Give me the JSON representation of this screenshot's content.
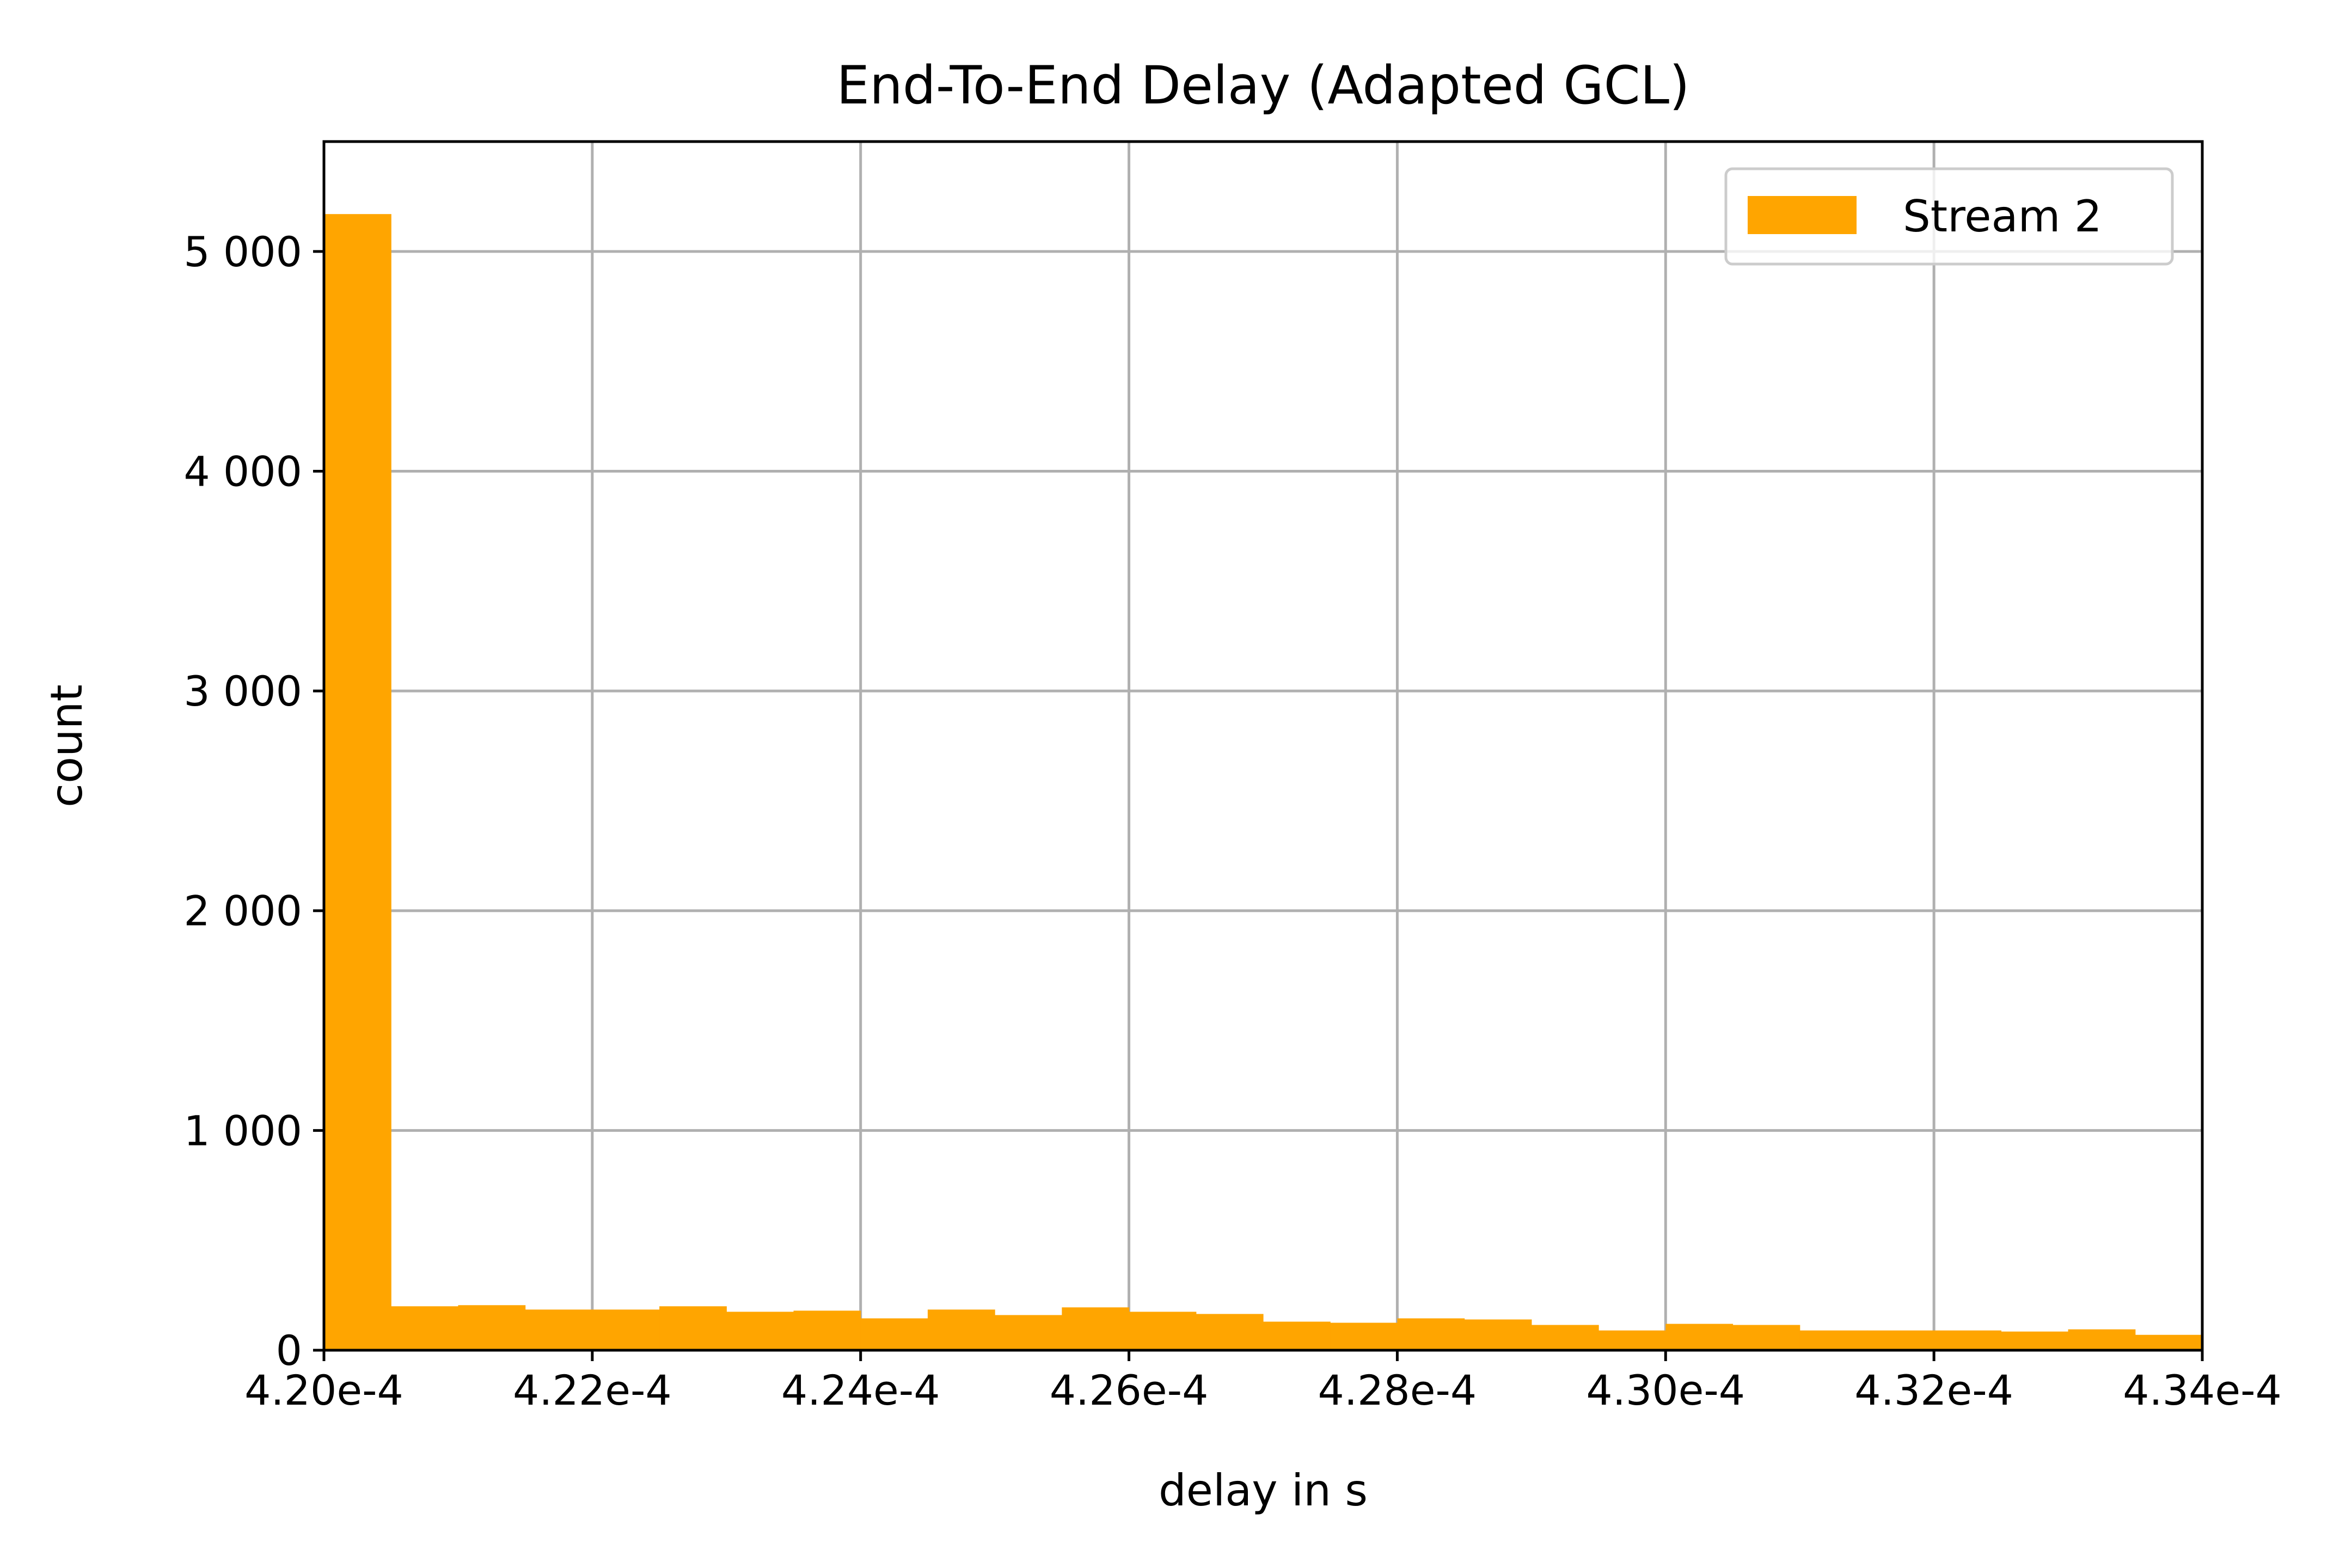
{
  "chart_data": {
    "type": "bar",
    "title": "End-To-End Delay (Adapted GCL)",
    "xlabel": "delay in s",
    "ylabel": "count",
    "xlim": [
      0.00042,
      0.000434
    ],
    "ylim": [
      0,
      5500
    ],
    "grid": true,
    "legend_position": "top-right",
    "bar_color": "#ffa500",
    "x_ticks": [
      {
        "value": 0.00042,
        "label": "4.20e-4"
      },
      {
        "value": 0.000422,
        "label": "4.22e-4"
      },
      {
        "value": 0.000424,
        "label": "4.24e-4"
      },
      {
        "value": 0.000426,
        "label": "4.26e-4"
      },
      {
        "value": 0.000428,
        "label": "4.28e-4"
      },
      {
        "value": 0.00043,
        "label": "4.30e-4"
      },
      {
        "value": 0.000432,
        "label": "4.32e-4"
      },
      {
        "value": 0.000434,
        "label": "4.34e-4"
      }
    ],
    "y_ticks": [
      {
        "value": 0,
        "label": "0"
      },
      {
        "value": 1000,
        "label": "1 000"
      },
      {
        "value": 2000,
        "label": "2 000"
      },
      {
        "value": 3000,
        "label": "3 000"
      },
      {
        "value": 4000,
        "label": "4 000"
      },
      {
        "value": 5000,
        "label": "5 000"
      }
    ],
    "series": [
      {
        "name": "Stream 2",
        "bin_start": 0.00042,
        "bin_width": 5e-07,
        "values": [
          5170,
          200,
          205,
          185,
          185,
          200,
          175,
          180,
          145,
          185,
          160,
          195,
          175,
          165,
          130,
          125,
          145,
          140,
          115,
          90,
          120,
          115,
          90,
          90,
          90,
          85,
          95,
          70
        ]
      }
    ]
  }
}
